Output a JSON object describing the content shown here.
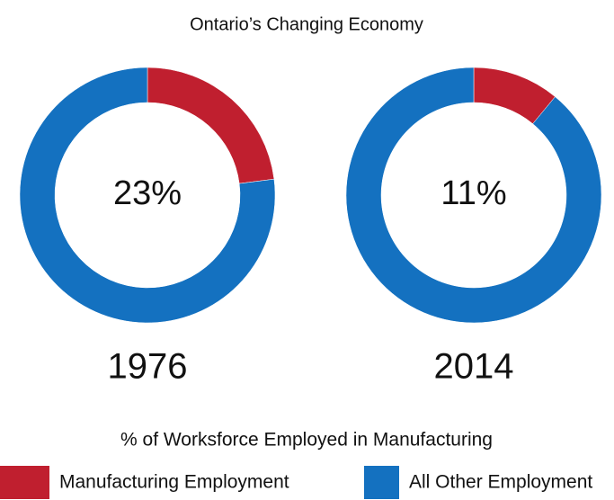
{
  "chart_data": {
    "type": "donut",
    "title": "Ontario’s Changing Economy",
    "subtitle": "% of Worksforce Employed in Manufacturing",
    "categories": [
      "1976",
      "2014"
    ],
    "series": [
      {
        "name": "Manufacturing Employment",
        "color": "#c01f2f",
        "values": [
          23,
          11
        ],
        "value_labels": [
          "23%",
          "11%"
        ]
      },
      {
        "name": "All Other Employment",
        "color": "#1471c0",
        "values": [
          77,
          89
        ]
      }
    ]
  }
}
